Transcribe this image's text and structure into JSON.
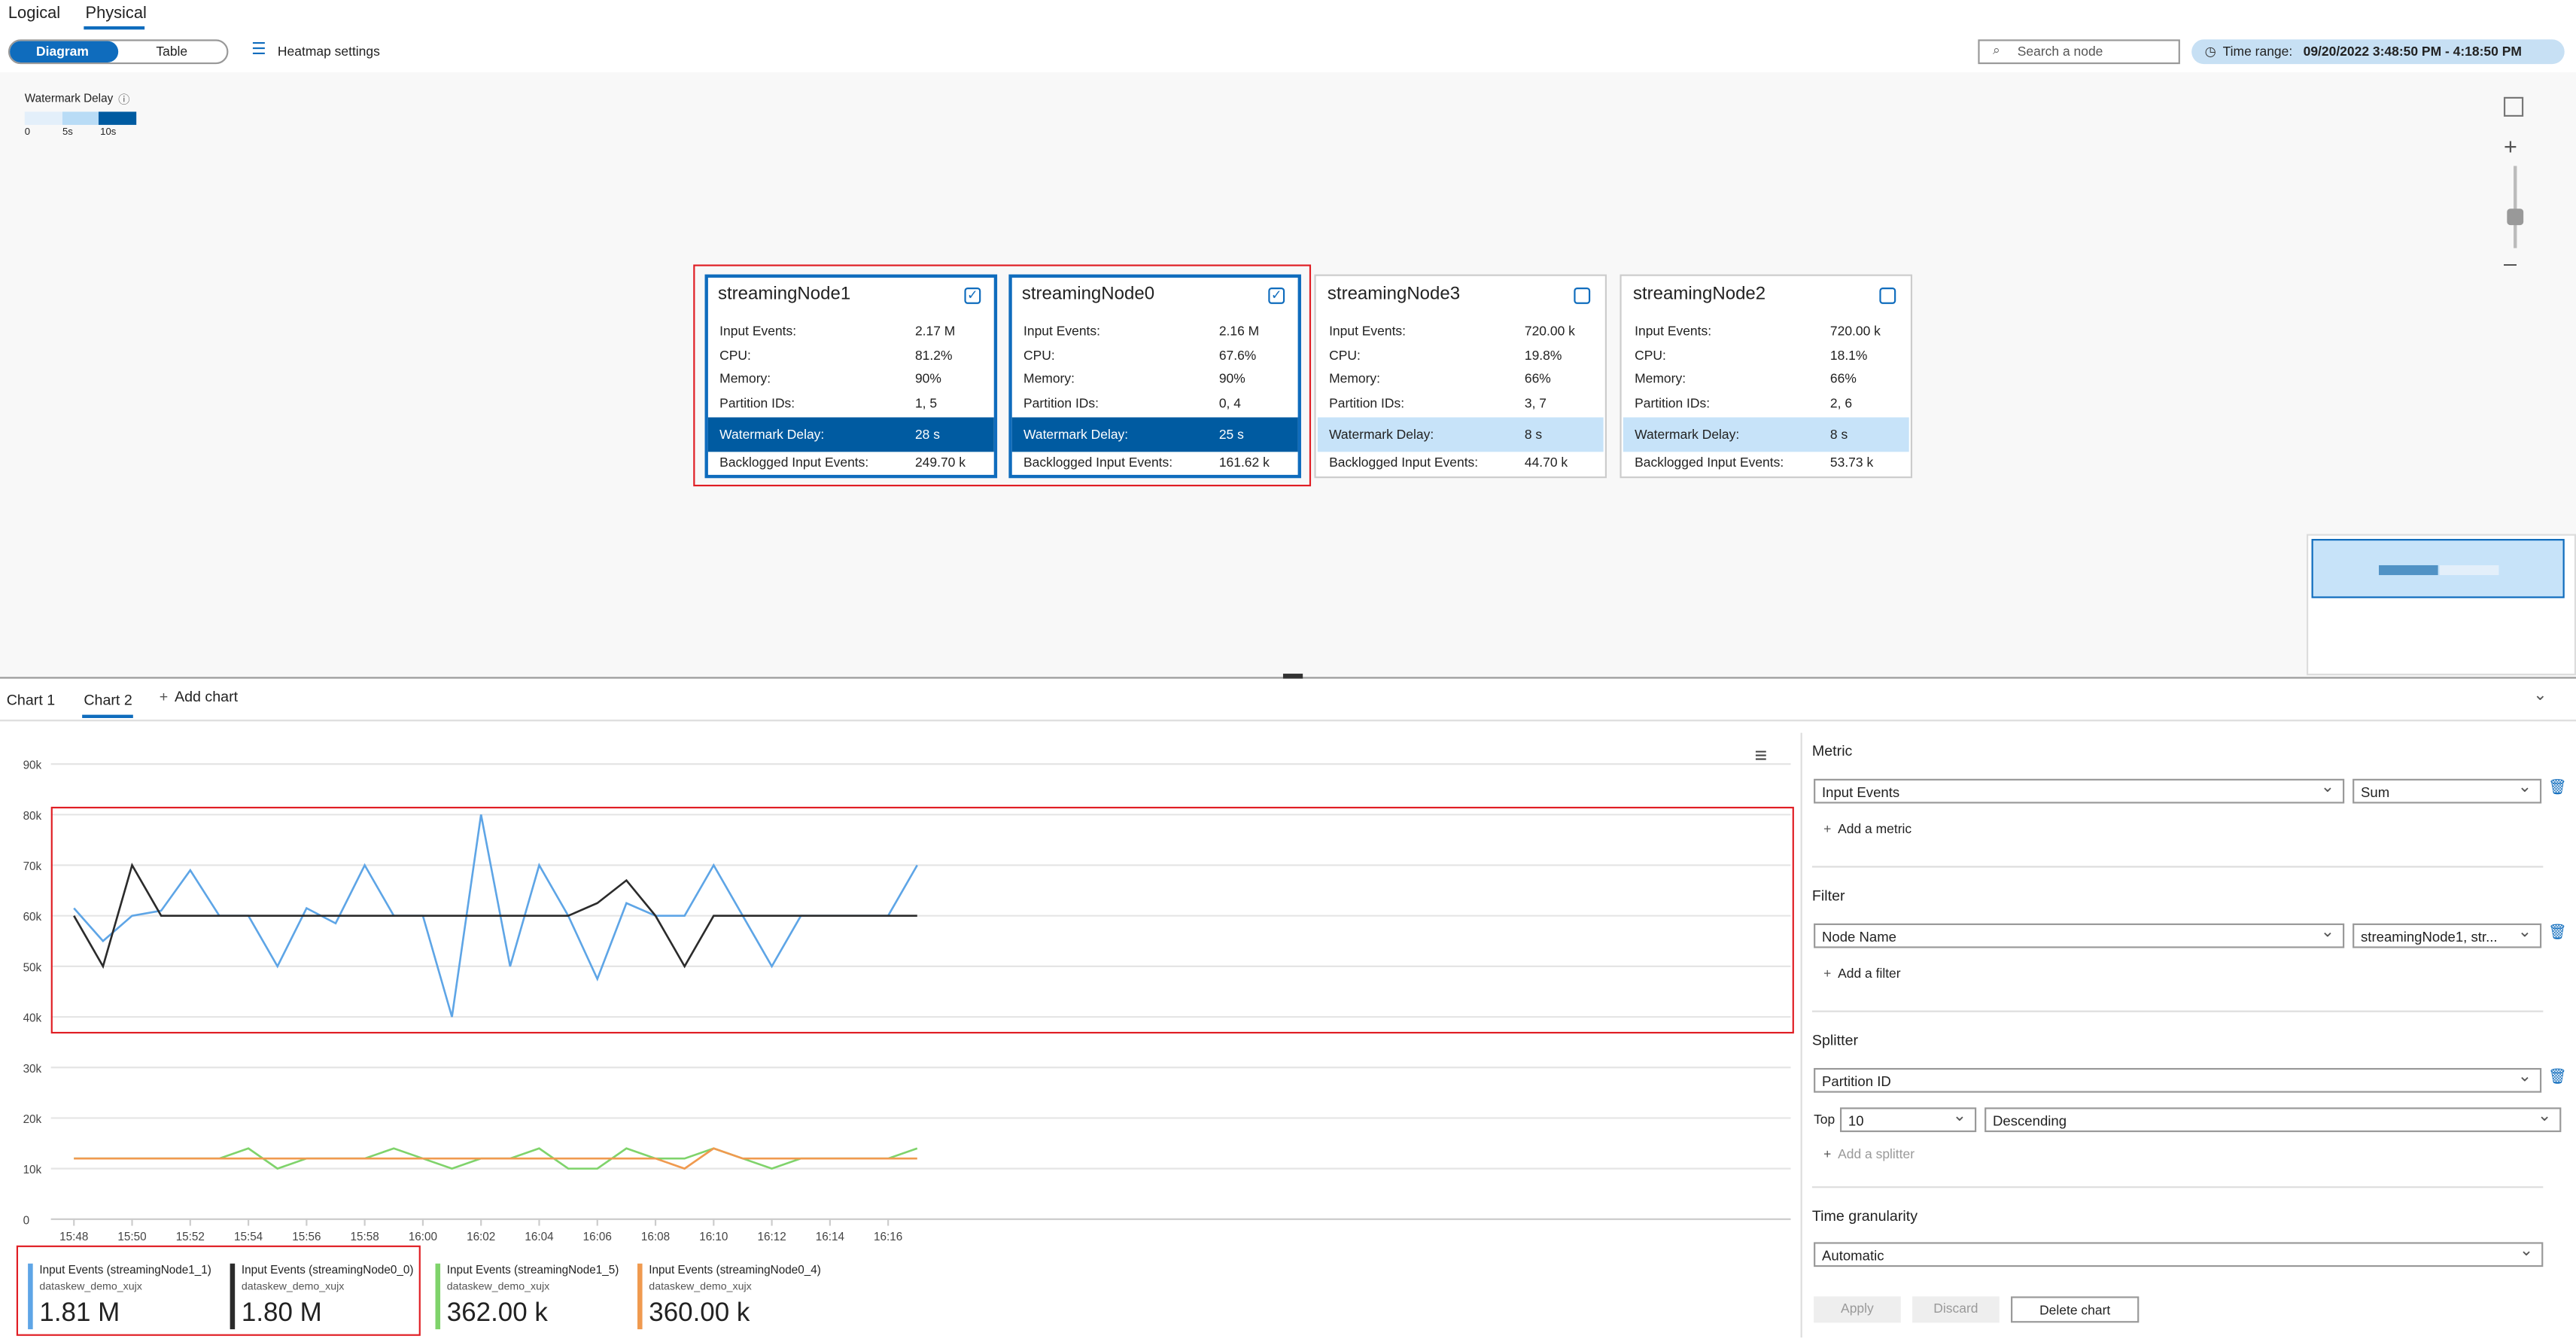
{
  "tabs": [
    "Logical",
    "Physical"
  ],
  "active_tab": 1,
  "view_toggle": [
    "Diagram",
    "Table"
  ],
  "active_view": 0,
  "heatmap_settings": "Heatmap settings",
  "search_placeholder": "Search a node",
  "time_range": {
    "label": "Time range:",
    "value": "09/20/2022 3:48:50 PM - 4:18:50 PM"
  },
  "heatmap_legend": {
    "title": "Watermark Delay",
    "labels": [
      "0",
      "5s",
      "10s"
    ],
    "colors": [
      "#e3effa",
      "#b9dcf6",
      "#005ba1"
    ]
  },
  "nodes": [
    {
      "title": "streamingNode1",
      "checked": true,
      "rows": [
        [
          "Input Events:",
          "2.17 M"
        ],
        [
          "CPU:",
          "81.2%"
        ],
        [
          "Memory:",
          "90%"
        ],
        [
          "Partition IDs:",
          "1, 5"
        ]
      ],
      "watermark": [
        "Watermark Delay:",
        "28 s"
      ],
      "watermark_color": "#005ba1",
      "backlog": [
        "Backlogged Input Events:",
        "249.70 k"
      ]
    },
    {
      "title": "streamingNode0",
      "checked": true,
      "rows": [
        [
          "Input Events:",
          "2.16 M"
        ],
        [
          "CPU:",
          "67.6%"
        ],
        [
          "Memory:",
          "90%"
        ],
        [
          "Partition IDs:",
          "0, 4"
        ]
      ],
      "watermark": [
        "Watermark Delay:",
        "25 s"
      ],
      "watermark_color": "#005ba1",
      "backlog": [
        "Backlogged Input Events:",
        "161.62 k"
      ]
    },
    {
      "title": "streamingNode3",
      "checked": false,
      "rows": [
        [
          "Input Events:",
          "720.00 k"
        ],
        [
          "CPU:",
          "19.8%"
        ],
        [
          "Memory:",
          "66%"
        ],
        [
          "Partition IDs:",
          "3, 7"
        ]
      ],
      "watermark": [
        "Watermark Delay:",
        "8 s"
      ],
      "watermark_color": "#c7e3f9",
      "backlog": [
        "Backlogged Input Events:",
        "44.70 k"
      ]
    },
    {
      "title": "streamingNode2",
      "checked": false,
      "rows": [
        [
          "Input Events:",
          "720.00 k"
        ],
        [
          "CPU:",
          "18.1%"
        ],
        [
          "Memory:",
          "66%"
        ],
        [
          "Partition IDs:",
          "2, 6"
        ]
      ],
      "watermark": [
        "Watermark Delay:",
        "8 s"
      ],
      "watermark_color": "#c7e3f9",
      "backlog": [
        "Backlogged Input Events:",
        "53.73 k"
      ]
    }
  ],
  "chart_tabs": [
    "Chart 1",
    "Chart 2"
  ],
  "active_chart_tab": 1,
  "add_chart": "Add chart",
  "chart_data": {
    "type": "line",
    "categories": [
      "15:48",
      null,
      "15:50",
      null,
      "15:52",
      null,
      "15:54",
      null,
      "15:56",
      null,
      "15:58",
      null,
      "16:00",
      null,
      "16:02",
      null,
      "16:04",
      null,
      "16:06",
      null,
      "16:08",
      null,
      "16:10",
      null,
      "16:12",
      null,
      "16:14",
      null,
      "16:16",
      null
    ],
    "ylim": [
      0,
      90000
    ],
    "yticks": [
      0,
      {
        "value": 10000,
        "label": "10k"
      },
      {
        "value": 20000,
        "label": "20k"
      },
      {
        "value": 30000,
        "label": "30k"
      },
      {
        "value": 40000,
        "label": "40k"
      },
      {
        "value": 50000,
        "label": "50k"
      },
      {
        "value": 60000,
        "label": "60k"
      },
      {
        "value": 70000,
        "label": "70k"
      },
      {
        "value": 80000,
        "label": "80k"
      },
      {
        "value": 90000,
        "label": "90k"
      }
    ],
    "grid": true,
    "series": [
      {
        "name": "Input Events (streamingNode1_1)",
        "source": "dataskew_demo_xujx",
        "total": "1.81 M",
        "color": "#5ea5e6",
        "values": [
          61500,
          55000,
          60000,
          61000,
          69000,
          60000,
          60000,
          50000,
          61500,
          58500,
          70000,
          60000,
          60000,
          40000,
          80000,
          50000,
          70000,
          60000,
          47500,
          62500,
          60000,
          60000,
          70000,
          60000,
          50000,
          60000,
          60000,
          60000,
          60000,
          70000
        ]
      },
      {
        "name": "Input Events (streamingNode0_0)",
        "source": "dataskew_demo_xujx",
        "total": "1.80 M",
        "color": "#2b2b2b",
        "values": [
          60000,
          50000,
          70000,
          60000,
          60000,
          60000,
          60000,
          60000,
          60000,
          60000,
          60000,
          60000,
          60000,
          60000,
          60000,
          60000,
          60000,
          60000,
          62500,
          67000,
          60000,
          50000,
          60000,
          60000,
          60000,
          60000,
          60000,
          60000,
          60000,
          60000
        ]
      },
      {
        "name": "Input Events (streamingNode1_5)",
        "source": "dataskew_demo_xujx",
        "total": "362.00 k",
        "color": "#7fd36b",
        "values": [
          12000,
          12000,
          12000,
          12000,
          12000,
          12000,
          14000,
          10000,
          12000,
          12000,
          12000,
          14000,
          12000,
          10000,
          12000,
          12000,
          14000,
          10000,
          10000,
          14000,
          12000,
          12000,
          14000,
          12000,
          10000,
          12000,
          12000,
          12000,
          12000,
          14000
        ]
      },
      {
        "name": "Input Events (streamingNode0_4)",
        "source": "dataskew_demo_xujx",
        "total": "360.00 k",
        "color": "#f09a4f",
        "values": [
          12000,
          12000,
          12000,
          12000,
          12000,
          12000,
          12000,
          12000,
          12000,
          12000,
          12000,
          12000,
          12000,
          12000,
          12000,
          12000,
          12000,
          12000,
          12000,
          12000,
          12000,
          10000,
          14000,
          12000,
          12000,
          12000,
          12000,
          12000,
          12000,
          12000
        ]
      }
    ]
  },
  "settings": {
    "metric": {
      "title": "Metric",
      "field": "Input Events",
      "aggregation": "Sum",
      "add": "Add a metric"
    },
    "filter": {
      "title": "Filter",
      "field": "Node Name",
      "value": "streamingNode1, str...",
      "add": "Add a filter"
    },
    "splitter": {
      "title": "Splitter",
      "field": "Partition ID",
      "top_label": "Top",
      "top": "10",
      "order": "Descending",
      "add": "Add a splitter"
    },
    "granularity": {
      "title": "Time granularity",
      "value": "Automatic"
    },
    "buttons": [
      "Apply",
      "Discard",
      "Delete chart"
    ]
  }
}
